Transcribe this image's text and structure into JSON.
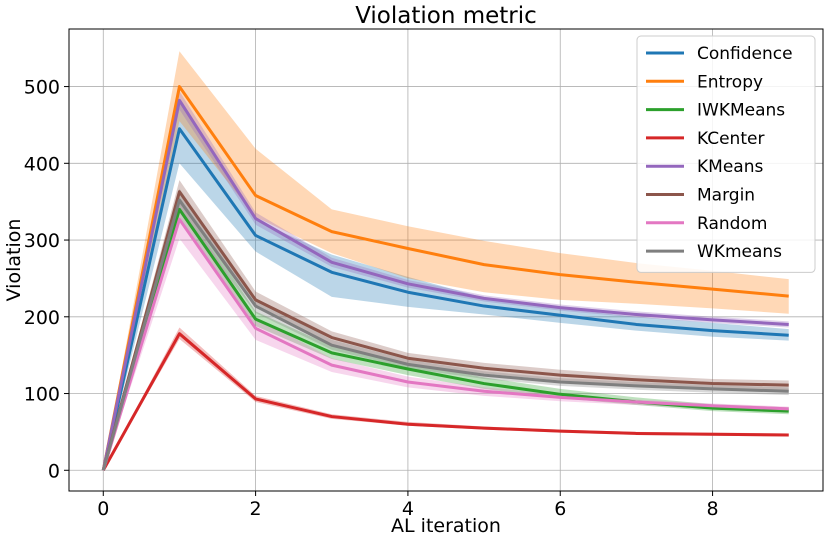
{
  "chart_data": {
    "type": "line",
    "title": "Violation metric",
    "xlabel": "AL iteration",
    "ylabel": "Violation",
    "xlim": [
      -0.45,
      9.45
    ],
    "ylim": [
      -27,
      575
    ],
    "xticks": [
      0,
      2,
      4,
      6,
      8
    ],
    "yticks": [
      0,
      100,
      200,
      300,
      400,
      500
    ],
    "grid": true,
    "legend_position": "top-right",
    "x": [
      0,
      1,
      2,
      3,
      4,
      5,
      6,
      7,
      8,
      9
    ],
    "series": [
      {
        "name": "Confidence",
        "color": "#1f77b4",
        "values": [
          0,
          445,
          306,
          258,
          232,
          214,
          202,
          190,
          182,
          176
        ],
        "lower": [
          0,
          400,
          285,
          226,
          213,
          203,
          192,
          182,
          174,
          169
        ],
        "upper": [
          0,
          480,
          326,
          281,
          252,
          225,
          211,
          200,
          192,
          184
        ]
      },
      {
        "name": "Entropy",
        "color": "#ff7f0e",
        "values": [
          0,
          500,
          358,
          311,
          289,
          268,
          255,
          245,
          236,
          227
        ],
        "lower": [
          0,
          455,
          330,
          283,
          250,
          232,
          222,
          217,
          211,
          204
        ],
        "upper": [
          0,
          546,
          419,
          340,
          318,
          299,
          283,
          270,
          260,
          249
        ]
      },
      {
        "name": "IWKMeans",
        "color": "#2ca02c",
        "values": [
          0,
          340,
          197,
          153,
          132,
          113,
          99,
          89,
          81,
          77
        ],
        "lower": [
          0,
          327,
          188,
          145,
          124,
          106,
          94,
          85,
          77,
          73
        ],
        "upper": [
          0,
          356,
          207,
          162,
          140,
          121,
          106,
          95,
          86,
          82
        ]
      },
      {
        "name": "KCenter",
        "color": "#d62728",
        "values": [
          0,
          178,
          93,
          70,
          60,
          55,
          51,
          48,
          47,
          46
        ],
        "lower": [
          0,
          171,
          89,
          67,
          58,
          53,
          49,
          46,
          45,
          44
        ],
        "upper": [
          0,
          186,
          97,
          73,
          63,
          57,
          53,
          50,
          49,
          48
        ]
      },
      {
        "name": "KMeans",
        "color": "#9467bd",
        "values": [
          0,
          482,
          328,
          271,
          243,
          224,
          212,
          203,
          196,
          190
        ],
        "lower": [
          0,
          470,
          320,
          265,
          238,
          220,
          208,
          199,
          192,
          186
        ],
        "upper": [
          0,
          494,
          336,
          277,
          248,
          228,
          216,
          207,
          200,
          194
        ]
      },
      {
        "name": "Margin",
        "color": "#8c564b",
        "values": [
          0,
          363,
          222,
          173,
          146,
          133,
          124,
          118,
          113,
          111
        ],
        "lower": [
          0,
          348,
          212,
          164,
          139,
          126,
          117,
          111,
          106,
          104
        ],
        "upper": [
          0,
          378,
          233,
          181,
          153,
          140,
          131,
          124,
          119,
          117
        ]
      },
      {
        "name": "Random",
        "color": "#e377c2",
        "values": [
          0,
          327,
          185,
          137,
          115,
          103,
          95,
          89,
          84,
          80
        ],
        "lower": [
          0,
          302,
          170,
          128,
          108,
          97,
          90,
          85,
          80,
          77
        ],
        "upper": [
          0,
          352,
          199,
          146,
          122,
          108,
          99,
          92,
          87,
          83
        ]
      },
      {
        "name": "WKmeans",
        "color": "#7f7f7f",
        "values": [
          0,
          352,
          214,
          163,
          138,
          124,
          115,
          110,
          106,
          103
        ],
        "lower": [
          0,
          337,
          205,
          157,
          133,
          119,
          110,
          105,
          101,
          98
        ],
        "upper": [
          0,
          367,
          224,
          170,
          144,
          129,
          120,
          115,
          111,
          108
        ]
      }
    ]
  }
}
